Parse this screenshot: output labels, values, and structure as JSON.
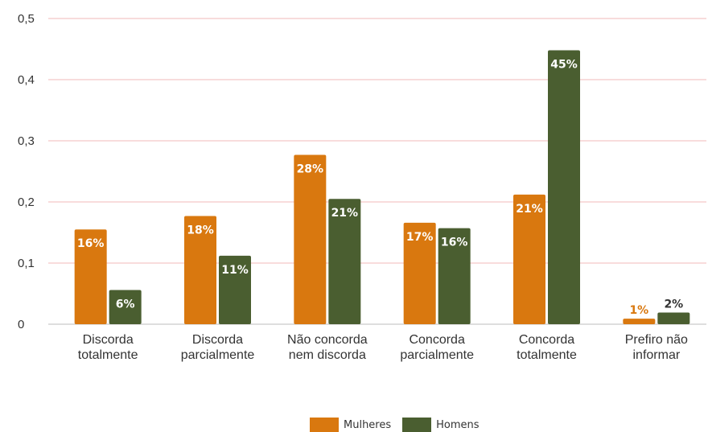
{
  "chart_data": {
    "type": "bar",
    "categories": [
      [
        "Discorda",
        "totalmente"
      ],
      [
        "Discorda",
        "parcialmente"
      ],
      [
        "Não concorda",
        "nem discorda"
      ],
      [
        "Concorda",
        "parcialmente"
      ],
      [
        "Concorda",
        "totalmente"
      ],
      [
        "Prefiro não",
        "informar"
      ]
    ],
    "series": [
      {
        "name": "Mulheres",
        "color": "#D9780F",
        "values": [
          0.155,
          0.177,
          0.277,
          0.166,
          0.212,
          0.009
        ],
        "labels": [
          "16%",
          "18%",
          "28%",
          "17%",
          "21%",
          "1%"
        ]
      },
      {
        "name": "Homens",
        "color": "#4A5E30",
        "values": [
          0.056,
          0.112,
          0.205,
          0.157,
          0.448,
          0.019
        ],
        "labels": [
          "6%",
          "11%",
          "21%",
          "16%",
          "45%",
          "2%"
        ]
      }
    ],
    "y_ticks": [
      "0",
      "0,1",
      "0,2",
      "0,3",
      "0,4",
      "0,5"
    ],
    "ylim": [
      0,
      0.5
    ],
    "grid": true,
    "gridline_color": "#F0B8B8",
    "legend_position": "bottom"
  }
}
